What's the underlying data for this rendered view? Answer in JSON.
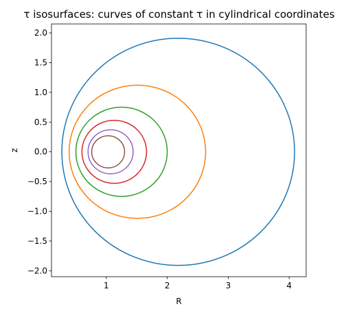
{
  "chart_data": {
    "type": "line",
    "title": "τ isosurfaces: curves of constant τ in cylindrical coordinates",
    "xlabel": "R",
    "ylabel": "z",
    "xlim": [
      0.1,
      4.28
    ],
    "ylim": [
      -2.1,
      2.15
    ],
    "x_ticks": [
      1,
      2,
      3,
      4
    ],
    "y_ticks": [
      -2.0,
      -1.5,
      -1.0,
      -0.5,
      0.0,
      0.5,
      1.0,
      1.5,
      2.0
    ],
    "x_tick_labels": [
      "1",
      "2",
      "3",
      "4"
    ],
    "y_tick_labels": [
      "−2.0",
      "−1.5",
      "−1.0",
      "−0.5",
      "0.0",
      "0.5",
      "1.0",
      "1.5",
      "2.0"
    ],
    "grid": false,
    "legend": "none",
    "aspect": "equal",
    "series": [
      {
        "center_R": 2.18,
        "radius": 1.91,
        "color": "#1f77b4"
      },
      {
        "center_R": 1.51,
        "radius": 1.12,
        "color": "#ff7f0e"
      },
      {
        "center_R": 1.25,
        "radius": 0.75,
        "color": "#2ca02c"
      },
      {
        "center_R": 1.13,
        "radius": 0.53,
        "color": "#d62728"
      },
      {
        "center_R": 1.07,
        "radius": 0.37,
        "color": "#9467bd"
      },
      {
        "center_R": 1.03,
        "radius": 0.27,
        "color": "#8c564b"
      }
    ]
  }
}
